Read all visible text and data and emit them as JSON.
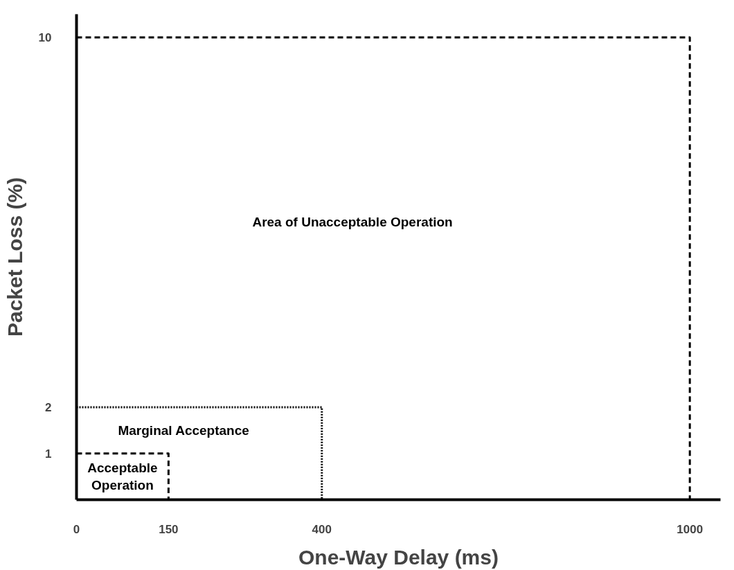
{
  "chart_data": {
    "type": "line",
    "xlabel": "One-Way Delay (ms)",
    "ylabel": "Packet Loss (%)",
    "xlim": [
      0,
      1050
    ],
    "xticks": [
      0,
      150,
      400,
      1000
    ],
    "ylim": [
      0,
      10.5
    ],
    "yticks": [
      1,
      2,
      10
    ],
    "series": [
      {
        "x": [
          0,
          150,
          150
        ],
        "values": [
          1,
          1,
          0
        ],
        "color": "#000000",
        "line_style": "dashed"
      },
      {
        "x": [
          0,
          400,
          400
        ],
        "values": [
          2,
          2,
          0
        ],
        "color": "#000000",
        "line_style": "dotted"
      },
      {
        "x": [
          0,
          1000,
          1000
        ],
        "values": [
          10,
          10,
          0
        ],
        "color": "#000000",
        "line_style": "dashed"
      }
    ],
    "annotations": [
      "Acceptable\nOperation",
      "Marginal Acceptance",
      "Area of Unacceptable Operation"
    ]
  }
}
